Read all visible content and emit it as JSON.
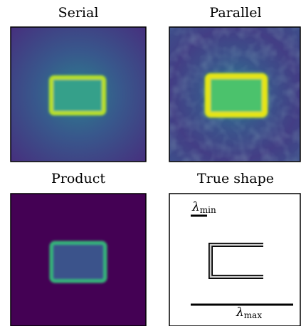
{
  "panels": [
    {
      "title": "Serial"
    },
    {
      "title": "Parallel"
    },
    {
      "title": "Product"
    },
    {
      "title": "True shape",
      "labels": [
        {
          "symbol": "λ",
          "subscript": "min"
        },
        {
          "symbol": "λ",
          "subscript": "max"
        }
      ]
    }
  ]
}
